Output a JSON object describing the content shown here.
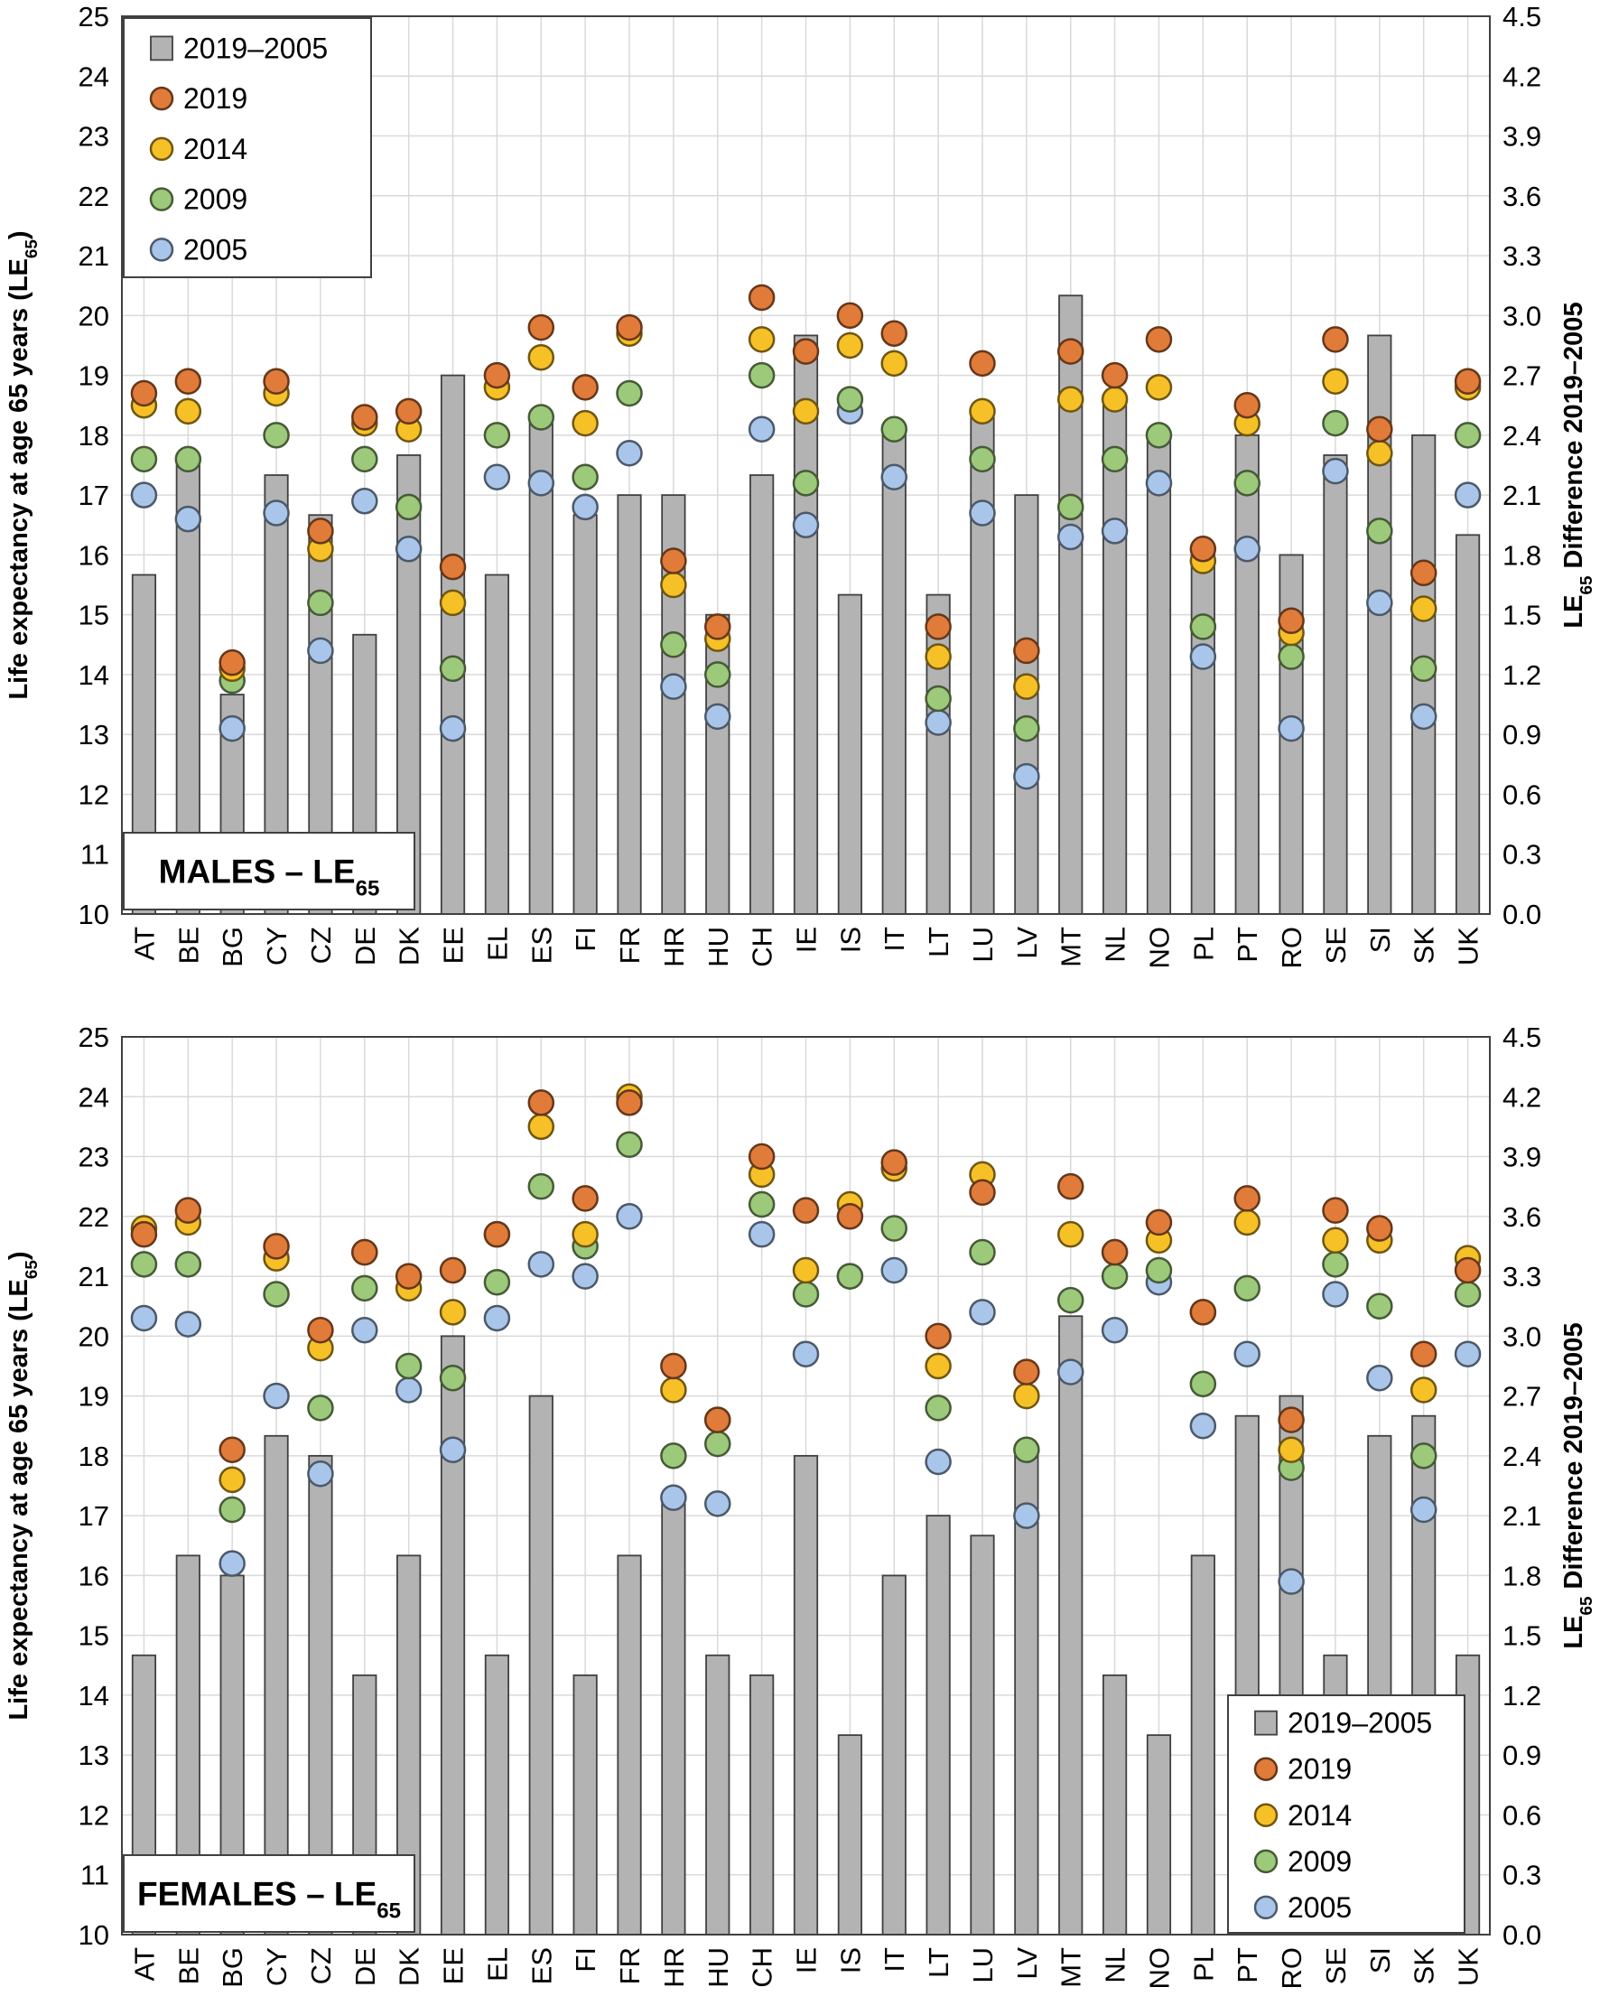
{
  "chart_data": [
    {
      "type": "bar+scatter",
      "panel_label": "MALES – LE",
      "panel_label_sub": "65",
      "ylabel_left": "Life expectancy at age 65 years (LE",
      "ylabel_left_sub": "65",
      "ylabel_left_end": ")",
      "ylabel_right_pre": "LE",
      "ylabel_right_sub": "65",
      "ylabel_right": " Difference 2019–2005",
      "ylim_left": [
        10,
        25
      ],
      "yticks_left": [
        "10",
        "11",
        "12",
        "13",
        "14",
        "15",
        "16",
        "17",
        "18",
        "19",
        "20",
        "21",
        "22",
        "23",
        "24",
        "25"
      ],
      "ylim_right": [
        0,
        4.5
      ],
      "yticks_right": [
        "0.0",
        "0.3",
        "0.6",
        "0.9",
        "1.2",
        "1.5",
        "1.8",
        "2.1",
        "2.4",
        "2.7",
        "3.0",
        "3.3",
        "3.6",
        "3.9",
        "4.2",
        "4.5"
      ],
      "legend_position": "top-left",
      "categories": [
        "AT",
        "BE",
        "BG",
        "CY",
        "CZ",
        "DE",
        "DK",
        "EE",
        "EL",
        "ES",
        "FI",
        "FR",
        "HR",
        "HU",
        "CH",
        "IE",
        "IS",
        "IT",
        "LT",
        "LU",
        "LV",
        "MT",
        "NL",
        "NO",
        "PL",
        "PT",
        "RO",
        "SE",
        "SI",
        "SK",
        "UK"
      ],
      "bars": {
        "name": "2019–2005",
        "color": "#b3b3b3",
        "values": [
          1.7,
          2.3,
          1.1,
          2.2,
          2.0,
          1.4,
          2.3,
          2.7,
          1.7,
          2.5,
          2.0,
          2.1,
          2.1,
          1.5,
          2.2,
          2.9,
          1.6,
          2.4,
          1.6,
          2.5,
          2.1,
          3.1,
          2.6,
          2.4,
          1.8,
          2.4,
          1.8,
          2.3,
          2.9,
          2.4,
          1.9
        ]
      },
      "series": [
        {
          "name": "2019",
          "color": "#e07b39",
          "values": [
            18.7,
            18.9,
            14.2,
            18.9,
            16.4,
            18.3,
            18.4,
            15.8,
            19.0,
            19.8,
            18.8,
            19.8,
            15.9,
            14.8,
            20.3,
            19.4,
            20.0,
            19.7,
            14.8,
            19.2,
            14.4,
            19.4,
            19.0,
            19.6,
            16.1,
            18.5,
            14.9,
            19.6,
            18.1,
            15.7,
            18.9
          ]
        },
        {
          "name": "2014",
          "color": "#f6c027",
          "values": [
            18.5,
            18.4,
            14.1,
            18.7,
            16.1,
            18.2,
            18.1,
            15.2,
            18.8,
            19.3,
            18.2,
            19.7,
            15.5,
            14.6,
            19.6,
            18.4,
            19.5,
            19.2,
            14.3,
            18.4,
            13.8,
            18.6,
            18.6,
            18.8,
            15.9,
            18.2,
            14.7,
            18.9,
            17.7,
            15.1,
            18.8
          ]
        },
        {
          "name": "2009",
          "color": "#9cc97a",
          "values": [
            17.6,
            17.6,
            13.9,
            18.0,
            15.2,
            17.6,
            16.8,
            14.1,
            18.0,
            18.3,
            17.3,
            18.7,
            14.5,
            14.0,
            19.0,
            17.2,
            18.6,
            18.1,
            13.6,
            17.6,
            13.1,
            16.8,
            17.6,
            18.0,
            14.8,
            17.2,
            14.3,
            18.2,
            16.4,
            14.1,
            18.0
          ]
        },
        {
          "name": "2005",
          "color": "#a9c6ea",
          "values": [
            17.0,
            16.6,
            13.1,
            16.7,
            14.4,
            16.9,
            16.1,
            13.1,
            17.3,
            17.2,
            16.8,
            17.7,
            13.8,
            13.3,
            18.1,
            16.5,
            18.4,
            17.3,
            13.2,
            16.7,
            12.3,
            16.3,
            16.4,
            17.2,
            14.3,
            16.1,
            13.1,
            17.4,
            15.2,
            13.3,
            17.0
          ]
        }
      ]
    },
    {
      "type": "bar+scatter",
      "panel_label": "FEMALES – LE",
      "panel_label_sub": "65",
      "ylabel_left": "Life expectancy at age 65 years (LE",
      "ylabel_left_sub": "65",
      "ylabel_left_end": ")",
      "ylabel_right_pre": "LE",
      "ylabel_right_sub": "65",
      "ylabel_right": " Difference 2019–2005",
      "ylim_left": [
        10,
        25
      ],
      "yticks_left": [
        "10",
        "11",
        "12",
        "13",
        "14",
        "15",
        "16",
        "17",
        "18",
        "19",
        "20",
        "21",
        "22",
        "23",
        "24",
        "25"
      ],
      "ylim_right": [
        0,
        4.5
      ],
      "yticks_right": [
        "0.0",
        "0.3",
        "0.6",
        "0.9",
        "1.2",
        "1.5",
        "1.8",
        "2.1",
        "2.4",
        "2.7",
        "3.0",
        "3.3",
        "3.6",
        "3.9",
        "4.2",
        "4.5"
      ],
      "legend_position": "bottom-right",
      "categories": [
        "AT",
        "BE",
        "BG",
        "CY",
        "CZ",
        "DE",
        "DK",
        "EE",
        "EL",
        "ES",
        "FI",
        "FR",
        "HR",
        "HU",
        "CH",
        "IE",
        "IS",
        "IT",
        "LT",
        "LU",
        "LV",
        "MT",
        "NL",
        "NO",
        "PL",
        "PT",
        "RO",
        "SE",
        "SI",
        "SK",
        "UK"
      ],
      "bars": {
        "name": "2019–2005",
        "color": "#b3b3b3",
        "values": [
          1.4,
          1.9,
          1.8,
          2.5,
          2.4,
          1.3,
          1.9,
          3.0,
          1.4,
          2.7,
          1.3,
          1.9,
          2.2,
          1.4,
          1.3,
          2.4,
          1.0,
          1.8,
          2.1,
          2.0,
          2.4,
          3.1,
          1.3,
          1.0,
          1.9,
          2.6,
          2.7,
          1.4,
          2.5,
          2.6,
          1.4
        ]
      },
      "series": [
        {
          "name": "2019",
          "color": "#e07b39",
          "values": [
            21.7,
            22.1,
            18.1,
            21.5,
            20.1,
            21.4,
            21.0,
            21.1,
            21.7,
            23.9,
            22.3,
            23.9,
            19.5,
            18.6,
            23.0,
            22.1,
            22.0,
            22.9,
            20.0,
            22.4,
            19.4,
            22.5,
            21.4,
            21.9,
            20.4,
            22.3,
            18.6,
            22.1,
            21.8,
            19.7,
            21.1
          ]
        },
        {
          "name": "2014",
          "color": "#f6c027",
          "values": [
            21.8,
            21.9,
            17.6,
            21.3,
            19.8,
            21.4,
            20.8,
            20.4,
            21.7,
            23.5,
            21.7,
            24.0,
            19.1,
            18.6,
            22.7,
            21.1,
            22.2,
            22.8,
            19.5,
            22.7,
            19.0,
            21.7,
            21.4,
            21.6,
            20.4,
            21.9,
            18.1,
            21.6,
            21.6,
            19.1,
            21.3
          ]
        },
        {
          "name": "2009",
          "color": "#9cc97a",
          "values": [
            21.2,
            21.2,
            17.1,
            20.7,
            18.8,
            20.8,
            19.5,
            19.3,
            20.9,
            22.5,
            21.5,
            23.2,
            18.0,
            18.2,
            22.2,
            20.7,
            21.0,
            21.8,
            18.8,
            21.4,
            18.1,
            20.6,
            21.0,
            21.1,
            19.2,
            20.8,
            17.8,
            21.2,
            20.5,
            18.0,
            20.7
          ]
        },
        {
          "name": "2005",
          "color": "#a9c6ea",
          "values": [
            20.3,
            20.2,
            16.2,
            19.0,
            17.7,
            20.1,
            19.1,
            18.1,
            20.3,
            21.2,
            21.0,
            22.0,
            17.3,
            17.2,
            21.7,
            19.7,
            21.0,
            21.1,
            17.9,
            20.4,
            17.0,
            19.4,
            20.1,
            20.9,
            18.5,
            19.7,
            15.9,
            20.7,
            19.3,
            17.1,
            19.7
          ]
        }
      ]
    }
  ]
}
